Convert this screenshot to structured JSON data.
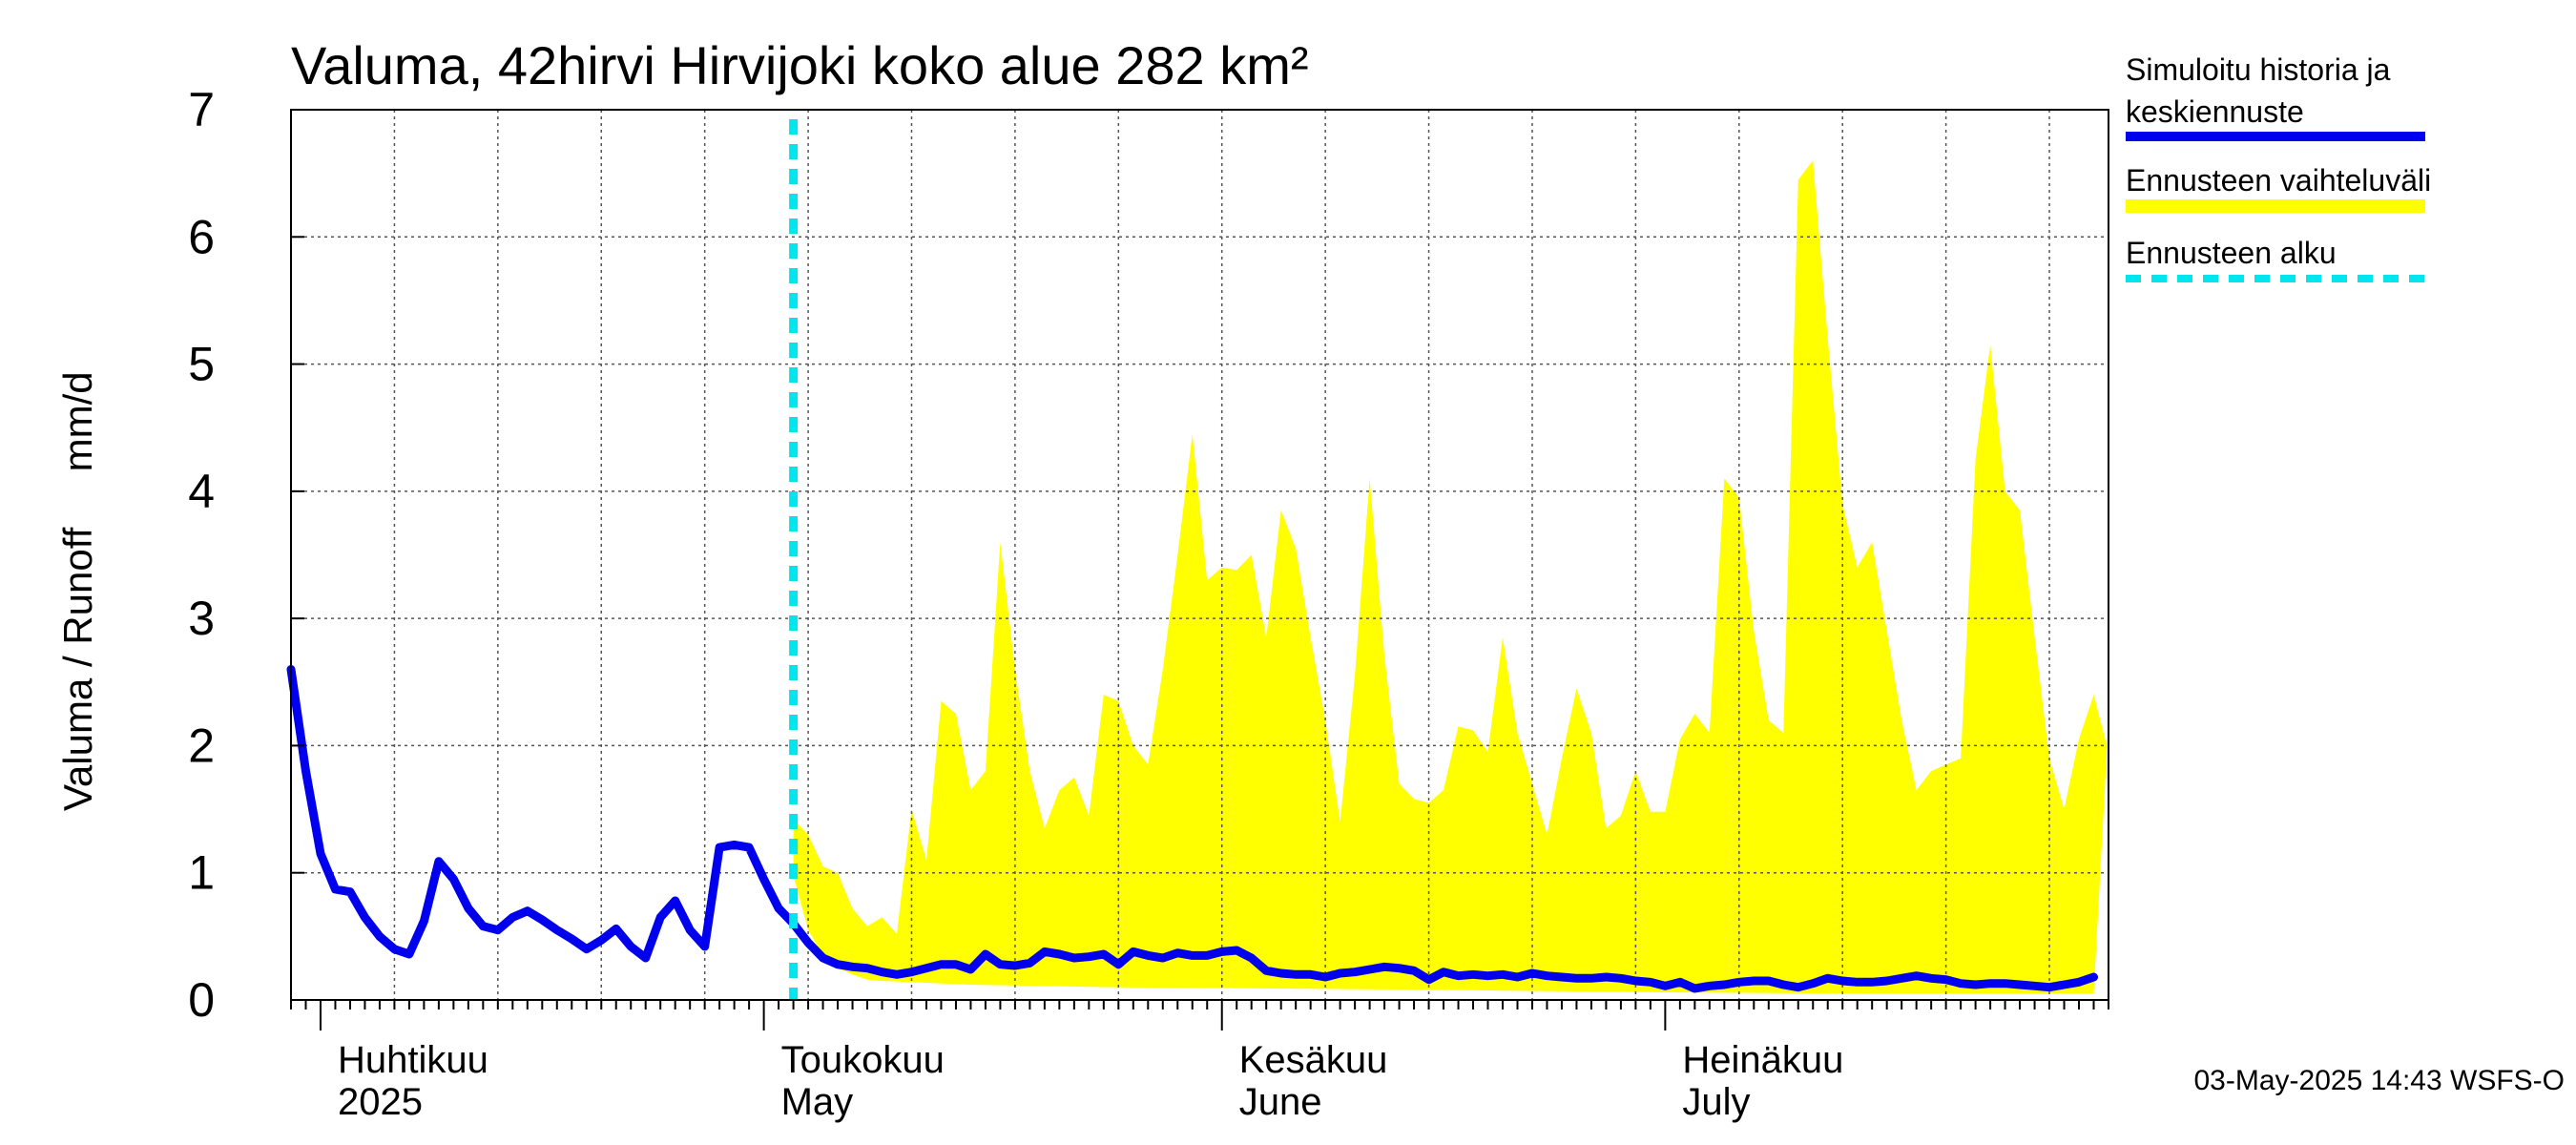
{
  "chart_data": {
    "type": "area",
    "title": "Valuma, 42hirvi Hirvijoki koko alue 282 km²",
    "ylabel": "Valuma / Runoff     mm/d",
    "xlabel": "",
    "x_start": "2025-03-30",
    "x_end": "2025-07-31",
    "ylim": [
      0,
      7
    ],
    "yticks": [
      0,
      1,
      2,
      3,
      4,
      5,
      6,
      7
    ],
    "grid": true,
    "legend_position": "right",
    "month_labels": [
      {
        "date": "2025-04-01",
        "fi": "Huhtikuu",
        "en": "2025"
      },
      {
        "date": "2025-05-01",
        "fi": "Toukokuu",
        "en": "May"
      },
      {
        "date": "2025-06-01",
        "fi": "Kesäkuu",
        "en": "June"
      },
      {
        "date": "2025-07-01",
        "fi": "Heinäkuu",
        "en": "July"
      }
    ],
    "forecast_start": "2025-05-03",
    "legend": [
      {
        "label": "Simuloitu historia ja",
        "label2": "keskiennuste",
        "color": "#0000ee",
        "style": "solid"
      },
      {
        "label": "Ennusteen vaihteluväli",
        "label2": "",
        "color": "#ffff00",
        "style": "band"
      },
      {
        "label": "Ennusteen alku",
        "label2": "",
        "color": "#00e5ee",
        "style": "dashed"
      }
    ],
    "series": [
      {
        "name": "Simuloitu historia ja keskiennuste",
        "color": "#0000ee",
        "points": [
          [
            "2025-03-30",
            2.6
          ],
          [
            "2025-03-31",
            1.8
          ],
          [
            "2025-04-01",
            1.15
          ],
          [
            "2025-04-02",
            0.87
          ],
          [
            "2025-04-03",
            0.85
          ],
          [
            "2025-04-04",
            0.65
          ],
          [
            "2025-04-05",
            0.5
          ],
          [
            "2025-04-06",
            0.4
          ],
          [
            "2025-04-07",
            0.36
          ],
          [
            "2025-04-08",
            0.62
          ],
          [
            "2025-04-09",
            1.09
          ],
          [
            "2025-04-10",
            0.95
          ],
          [
            "2025-04-11",
            0.72
          ],
          [
            "2025-04-12",
            0.58
          ],
          [
            "2025-04-13",
            0.55
          ],
          [
            "2025-04-14",
            0.65
          ],
          [
            "2025-04-15",
            0.7
          ],
          [
            "2025-04-16",
            0.63
          ],
          [
            "2025-04-17",
            0.55
          ],
          [
            "2025-04-18",
            0.48
          ],
          [
            "2025-04-19",
            0.4
          ],
          [
            "2025-04-20",
            0.47
          ],
          [
            "2025-04-21",
            0.56
          ],
          [
            "2025-04-22",
            0.42
          ],
          [
            "2025-04-23",
            0.33
          ],
          [
            "2025-04-24",
            0.65
          ],
          [
            "2025-04-25",
            0.78
          ],
          [
            "2025-04-26",
            0.55
          ],
          [
            "2025-04-27",
            0.42
          ],
          [
            "2025-04-28",
            1.2
          ],
          [
            "2025-04-29",
            1.22
          ],
          [
            "2025-04-30",
            1.2
          ],
          [
            "2025-05-01",
            0.95
          ],
          [
            "2025-05-02",
            0.72
          ],
          [
            "2025-05-03",
            0.6
          ],
          [
            "2025-05-04",
            0.45
          ],
          [
            "2025-05-05",
            0.33
          ],
          [
            "2025-05-06",
            0.28
          ],
          [
            "2025-05-07",
            0.26
          ],
          [
            "2025-05-08",
            0.25
          ],
          [
            "2025-05-09",
            0.22
          ],
          [
            "2025-05-10",
            0.2
          ],
          [
            "2025-05-11",
            0.22
          ],
          [
            "2025-05-12",
            0.25
          ],
          [
            "2025-05-13",
            0.28
          ],
          [
            "2025-05-14",
            0.28
          ],
          [
            "2025-05-15",
            0.24
          ],
          [
            "2025-05-16",
            0.36
          ],
          [
            "2025-05-17",
            0.28
          ],
          [
            "2025-05-18",
            0.27
          ],
          [
            "2025-05-19",
            0.29
          ],
          [
            "2025-05-20",
            0.38
          ],
          [
            "2025-05-21",
            0.36
          ],
          [
            "2025-05-22",
            0.33
          ],
          [
            "2025-05-23",
            0.34
          ],
          [
            "2025-05-24",
            0.36
          ],
          [
            "2025-05-25",
            0.28
          ],
          [
            "2025-05-26",
            0.38
          ],
          [
            "2025-05-27",
            0.35
          ],
          [
            "2025-05-28",
            0.33
          ],
          [
            "2025-05-29",
            0.37
          ],
          [
            "2025-05-30",
            0.35
          ],
          [
            "2025-05-31",
            0.35
          ],
          [
            "2025-06-01",
            0.38
          ],
          [
            "2025-06-02",
            0.39
          ],
          [
            "2025-06-03",
            0.33
          ],
          [
            "2025-06-04",
            0.23
          ],
          [
            "2025-06-05",
            0.21
          ],
          [
            "2025-06-06",
            0.2
          ],
          [
            "2025-06-07",
            0.2
          ],
          [
            "2025-06-08",
            0.18
          ],
          [
            "2025-06-09",
            0.21
          ],
          [
            "2025-06-10",
            0.22
          ],
          [
            "2025-06-11",
            0.24
          ],
          [
            "2025-06-12",
            0.26
          ],
          [
            "2025-06-13",
            0.25
          ],
          [
            "2025-06-14",
            0.23
          ],
          [
            "2025-06-15",
            0.16
          ],
          [
            "2025-06-16",
            0.22
          ],
          [
            "2025-06-17",
            0.19
          ],
          [
            "2025-06-18",
            0.2
          ],
          [
            "2025-06-19",
            0.19
          ],
          [
            "2025-06-20",
            0.2
          ],
          [
            "2025-06-21",
            0.18
          ],
          [
            "2025-06-22",
            0.21
          ],
          [
            "2025-06-23",
            0.19
          ],
          [
            "2025-06-24",
            0.18
          ],
          [
            "2025-06-25",
            0.17
          ],
          [
            "2025-06-26",
            0.17
          ],
          [
            "2025-06-27",
            0.18
          ],
          [
            "2025-06-28",
            0.17
          ],
          [
            "2025-06-29",
            0.15
          ],
          [
            "2025-06-30",
            0.14
          ],
          [
            "2025-07-01",
            0.11
          ],
          [
            "2025-07-02",
            0.14
          ],
          [
            "2025-07-03",
            0.09
          ],
          [
            "2025-07-04",
            0.11
          ],
          [
            "2025-07-05",
            0.12
          ],
          [
            "2025-07-06",
            0.14
          ],
          [
            "2025-07-07",
            0.15
          ],
          [
            "2025-07-08",
            0.15
          ],
          [
            "2025-07-09",
            0.12
          ],
          [
            "2025-07-10",
            0.1
          ],
          [
            "2025-07-11",
            0.13
          ],
          [
            "2025-07-12",
            0.17
          ],
          [
            "2025-07-13",
            0.15
          ],
          [
            "2025-07-14",
            0.14
          ],
          [
            "2025-07-15",
            0.14
          ],
          [
            "2025-07-16",
            0.15
          ],
          [
            "2025-07-17",
            0.17
          ],
          [
            "2025-07-18",
            0.19
          ],
          [
            "2025-07-19",
            0.17
          ],
          [
            "2025-07-20",
            0.16
          ],
          [
            "2025-07-21",
            0.13
          ],
          [
            "2025-07-22",
            0.12
          ],
          [
            "2025-07-23",
            0.13
          ],
          [
            "2025-07-24",
            0.13
          ],
          [
            "2025-07-25",
            0.12
          ],
          [
            "2025-07-26",
            0.11
          ],
          [
            "2025-07-27",
            0.1
          ],
          [
            "2025-07-28",
            0.12
          ],
          [
            "2025-07-29",
            0.14
          ],
          [
            "2025-07-30",
            0.18
          ]
        ]
      },
      {
        "name": "Ennusteen vaihteluväli",
        "color": "#ffff00",
        "lower": [
          [
            "2025-05-03",
            0.98
          ],
          [
            "2025-05-04",
            0.55
          ],
          [
            "2025-05-05",
            0.35
          ],
          [
            "2025-05-06",
            0.25
          ],
          [
            "2025-05-07",
            0.2
          ],
          [
            "2025-05-08",
            0.16
          ],
          [
            "2025-05-09",
            0.15
          ],
          [
            "2025-05-15",
            0.12
          ],
          [
            "2025-05-25",
            0.1
          ],
          [
            "2025-06-05",
            0.09
          ],
          [
            "2025-06-15",
            0.08
          ],
          [
            "2025-07-01",
            0.06
          ],
          [
            "2025-07-15",
            0.05
          ],
          [
            "2025-07-30",
            0.05
          ]
        ],
        "upper": [
          [
            "2025-05-03",
            1.42
          ],
          [
            "2025-05-04",
            1.3
          ],
          [
            "2025-05-05",
            1.05
          ],
          [
            "2025-05-06",
            1.0
          ],
          [
            "2025-05-07",
            0.72
          ],
          [
            "2025-05-08",
            0.58
          ],
          [
            "2025-05-09",
            0.65
          ],
          [
            "2025-05-10",
            0.52
          ],
          [
            "2025-05-11",
            1.5
          ],
          [
            "2025-05-12",
            1.1
          ],
          [
            "2025-05-13",
            2.35
          ],
          [
            "2025-05-14",
            2.25
          ],
          [
            "2025-05-15",
            1.65
          ],
          [
            "2025-05-16",
            1.8
          ],
          [
            "2025-05-17",
            3.6
          ],
          [
            "2025-05-18",
            2.6
          ],
          [
            "2025-05-19",
            1.8
          ],
          [
            "2025-05-20",
            1.35
          ],
          [
            "2025-05-21",
            1.65
          ],
          [
            "2025-05-22",
            1.75
          ],
          [
            "2025-05-23",
            1.45
          ],
          [
            "2025-05-24",
            2.4
          ],
          [
            "2025-05-25",
            2.35
          ],
          [
            "2025-05-26",
            2.0
          ],
          [
            "2025-05-27",
            1.85
          ],
          [
            "2025-05-28",
            2.6
          ],
          [
            "2025-05-29",
            3.5
          ],
          [
            "2025-05-30",
            4.45
          ],
          [
            "2025-05-31",
            3.3
          ],
          [
            "2025-06-01",
            3.4
          ],
          [
            "2025-06-02",
            3.38
          ],
          [
            "2025-06-03",
            3.5
          ],
          [
            "2025-06-04",
            2.85
          ],
          [
            "2025-06-05",
            3.85
          ],
          [
            "2025-06-06",
            3.55
          ],
          [
            "2025-06-07",
            2.85
          ],
          [
            "2025-06-08",
            2.2
          ],
          [
            "2025-06-09",
            1.4
          ],
          [
            "2025-06-10",
            2.55
          ],
          [
            "2025-06-11",
            4.1
          ],
          [
            "2025-06-12",
            2.7
          ],
          [
            "2025-06-13",
            1.7
          ],
          [
            "2025-06-14",
            1.58
          ],
          [
            "2025-06-15",
            1.55
          ],
          [
            "2025-06-16",
            1.65
          ],
          [
            "2025-06-17",
            2.15
          ],
          [
            "2025-06-18",
            2.12
          ],
          [
            "2025-06-19",
            1.95
          ],
          [
            "2025-06-20",
            2.85
          ],
          [
            "2025-06-21",
            2.1
          ],
          [
            "2025-06-22",
            1.7
          ],
          [
            "2025-06-23",
            1.3
          ],
          [
            "2025-06-24",
            1.9
          ],
          [
            "2025-06-25",
            2.45
          ],
          [
            "2025-06-26",
            2.1
          ],
          [
            "2025-06-27",
            1.35
          ],
          [
            "2025-06-28",
            1.45
          ],
          [
            "2025-06-29",
            1.8
          ],
          [
            "2025-06-30",
            1.48
          ],
          [
            "2025-07-01",
            1.48
          ],
          [
            "2025-07-02",
            2.05
          ],
          [
            "2025-07-03",
            2.25
          ],
          [
            "2025-07-04",
            2.1
          ],
          [
            "2025-07-05",
            4.1
          ],
          [
            "2025-07-06",
            3.95
          ],
          [
            "2025-07-07",
            2.9
          ],
          [
            "2025-07-08",
            2.2
          ],
          [
            "2025-07-09",
            2.1
          ],
          [
            "2025-07-10",
            6.45
          ],
          [
            "2025-07-11",
            6.6
          ],
          [
            "2025-07-12",
            5.2
          ],
          [
            "2025-07-13",
            3.9
          ],
          [
            "2025-07-14",
            3.4
          ],
          [
            "2025-07-15",
            3.6
          ],
          [
            "2025-07-16",
            2.9
          ],
          [
            "2025-07-17",
            2.2
          ],
          [
            "2025-07-18",
            1.65
          ],
          [
            "2025-07-19",
            1.8
          ],
          [
            "2025-07-20",
            1.85
          ],
          [
            "2025-07-21",
            1.9
          ],
          [
            "2025-07-22",
            4.25
          ],
          [
            "2025-07-23",
            5.15
          ],
          [
            "2025-07-24",
            4.0
          ],
          [
            "2025-07-25",
            3.85
          ],
          [
            "2025-07-26",
            2.85
          ],
          [
            "2025-07-27",
            1.9
          ],
          [
            "2025-07-28",
            1.5
          ],
          [
            "2025-07-29",
            2.05
          ],
          [
            "2025-07-30",
            2.4
          ],
          [
            "2025-07-31",
            1.95
          ],
          [
            "2025-08-01",
            1.5
          ],
          [
            "2025-08-02",
            2.2
          ]
        ]
      }
    ]
  },
  "timestamp": "03-May-2025 14:43 WSFS-O"
}
